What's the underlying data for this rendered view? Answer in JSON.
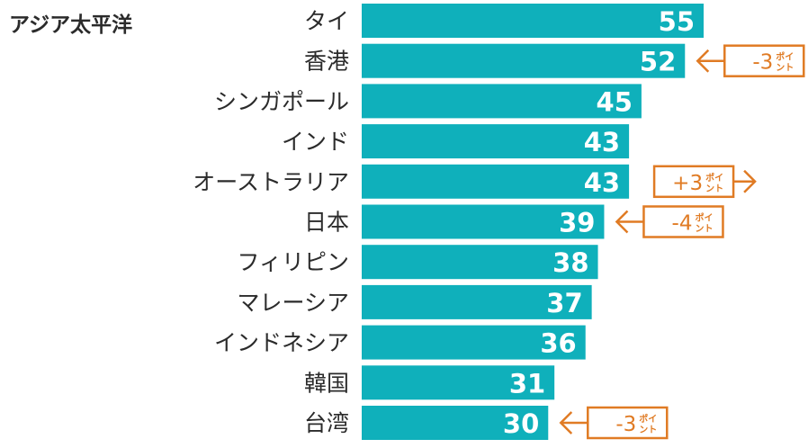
{
  "region": "アジア太平洋",
  "chart_data": {
    "type": "bar",
    "orientation": "horizontal",
    "title": "アジア太平洋",
    "categories": [
      "タイ",
      "香港",
      "シンガポール",
      "インド",
      "オーストラリア",
      "日本",
      "フィリピン",
      "マレーシア",
      "インドネシア",
      "韓国",
      "台湾"
    ],
    "values": [
      55,
      52,
      45,
      43,
      43,
      39,
      38,
      37,
      36,
      31,
      30
    ],
    "xlim": [
      0,
      55
    ],
    "bar_color": "#0FB0BB",
    "value_label_color": "#ffffff",
    "annotations": [
      {
        "category": "香港",
        "change_number": "-3",
        "unit": "ポイント",
        "direction": "left"
      },
      {
        "category": "オーストラリア",
        "change_number": "+3",
        "unit": "ポイント",
        "direction": "right"
      },
      {
        "category": "日本",
        "change_number": "-4",
        "unit": "ポイント",
        "direction": "left"
      },
      {
        "category": "台湾",
        "change_number": "-3",
        "unit": "ポイント",
        "direction": "left"
      }
    ],
    "annotation_color": "#E07B24"
  }
}
